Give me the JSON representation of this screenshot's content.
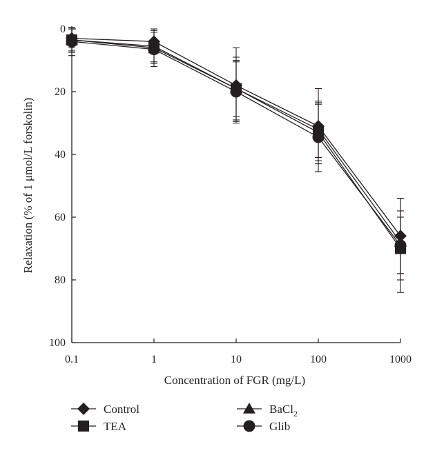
{
  "chart_data": {
    "type": "line",
    "xscale": "log",
    "x": [
      0.1,
      1,
      10,
      100,
      1000
    ],
    "xlim": [
      0.1,
      1000
    ],
    "ylim": [
      0,
      100
    ],
    "y_inverted": true,
    "xticks": [
      "0.1",
      "1",
      "10",
      "100",
      "1000"
    ],
    "yticks": [
      "0",
      "20",
      "40",
      "60",
      "80",
      "100"
    ],
    "xlabel": "Concentration of FGR (mg/L)",
    "ylabel": "Relaxation (% of 1 μmol/L forskolin)",
    "grid": false,
    "legend_position": "bottom",
    "series": [
      {
        "name": "Control",
        "marker": "diamond",
        "values": [
          3,
          4,
          18,
          31,
          66
        ],
        "errors": [
          3,
          4,
          12,
          12,
          12
        ]
      },
      {
        "name": "BaCl",
        "name_subscript": "2",
        "marker": "triangle",
        "values": [
          3.5,
          5.5,
          19,
          32,
          68
        ],
        "errors": [
          3.5,
          5,
          9,
          9,
          10
        ]
      },
      {
        "name": "TEA",
        "marker": "square",
        "values": [
          3.5,
          6,
          19,
          33,
          70
        ],
        "errors": [
          4,
          5,
          10,
          9,
          10
        ]
      },
      {
        "name": "Glib",
        "marker": "circle",
        "values": [
          4,
          6.5,
          20,
          34.5,
          69
        ],
        "errors": [
          4.5,
          5.5,
          9.5,
          11,
          15
        ]
      }
    ],
    "colors": {
      "ink": "#231f20"
    }
  }
}
